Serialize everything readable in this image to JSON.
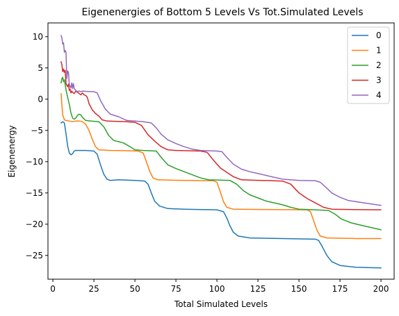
{
  "chart_data": {
    "type": "line",
    "title": "Eigenenergies of Bottom 5 Levels Vs Tot.Simulated Levels",
    "xlabel": "Total Simulated Levels",
    "ylabel": "Eigenenergy",
    "xlim": [
      -3,
      208
    ],
    "ylim": [
      -28.8,
      12.2
    ],
    "xticks": [
      0,
      25,
      50,
      75,
      100,
      125,
      150,
      175,
      200
    ],
    "yticks": [
      10,
      5,
      0,
      -5,
      -10,
      -15,
      -20,
      -25
    ],
    "grid": false,
    "legend_position": "top-right",
    "series": [
      {
        "name": "0",
        "color": "#1f77b4",
        "points": [
          [
            5,
            -3.8
          ],
          [
            6,
            -3.6
          ],
          [
            7,
            -3.8
          ],
          [
            8,
            -5.5
          ],
          [
            9,
            -7.5
          ],
          [
            10,
            -8.6
          ],
          [
            11,
            -8.9
          ],
          [
            12,
            -8.7
          ],
          [
            13,
            -8.3
          ],
          [
            14,
            -8.2
          ],
          [
            20,
            -8.2
          ],
          [
            25,
            -8.3
          ],
          [
            27,
            -8.8
          ],
          [
            29,
            -10.5
          ],
          [
            31,
            -12.0
          ],
          [
            33,
            -12.8
          ],
          [
            35,
            -13.0
          ],
          [
            40,
            -12.9
          ],
          [
            50,
            -13.0
          ],
          [
            56,
            -13.1
          ],
          [
            58,
            -13.6
          ],
          [
            60,
            -15.0
          ],
          [
            62,
            -16.3
          ],
          [
            65,
            -17.1
          ],
          [
            70,
            -17.5
          ],
          [
            80,
            -17.6
          ],
          [
            100,
            -17.7
          ],
          [
            104,
            -18.0
          ],
          [
            106,
            -19.0
          ],
          [
            108,
            -20.3
          ],
          [
            110,
            -21.3
          ],
          [
            113,
            -21.9
          ],
          [
            120,
            -22.2
          ],
          [
            140,
            -22.3
          ],
          [
            160,
            -22.4
          ],
          [
            162,
            -22.6
          ],
          [
            164,
            -23.5
          ],
          [
            167,
            -25.0
          ],
          [
            170,
            -26.0
          ],
          [
            175,
            -26.6
          ],
          [
            185,
            -26.9
          ],
          [
            200,
            -27.0
          ]
        ]
      },
      {
        "name": "1",
        "color": "#ff7f0e",
        "points": [
          [
            5,
            0.9
          ],
          [
            5.5,
            -1.0
          ],
          [
            6,
            -2.5
          ],
          [
            7,
            -3.3
          ],
          [
            8,
            -3.4
          ],
          [
            10,
            -3.5
          ],
          [
            12,
            -3.6
          ],
          [
            14,
            -3.5
          ],
          [
            16,
            -3.5
          ],
          [
            18,
            -3.6
          ],
          [
            20,
            -4.0
          ],
          [
            22,
            -5.0
          ],
          [
            24,
            -6.4
          ],
          [
            26,
            -7.6
          ],
          [
            28,
            -8.1
          ],
          [
            35,
            -8.2
          ],
          [
            45,
            -8.25
          ],
          [
            52,
            -8.3
          ],
          [
            55,
            -8.6
          ],
          [
            57,
            -10.0
          ],
          [
            59,
            -11.5
          ],
          [
            61,
            -12.6
          ],
          [
            64,
            -12.9
          ],
          [
            80,
            -13.0
          ],
          [
            98,
            -13.05
          ],
          [
            100,
            -13.3
          ],
          [
            102,
            -14.8
          ],
          [
            104,
            -16.4
          ],
          [
            106,
            -17.3
          ],
          [
            110,
            -17.6
          ],
          [
            130,
            -17.65
          ],
          [
            155,
            -17.7
          ],
          [
            157,
            -18.0
          ],
          [
            159,
            -19.5
          ],
          [
            161,
            -21.0
          ],
          [
            163,
            -21.9
          ],
          [
            167,
            -22.2
          ],
          [
            185,
            -22.3
          ],
          [
            200,
            -22.3
          ]
        ]
      },
      {
        "name": "2",
        "color": "#2ca02c",
        "points": [
          [
            5,
            2.6
          ],
          [
            5.5,
            3.3
          ],
          [
            6,
            3.5
          ],
          [
            6.5,
            2.8
          ],
          [
            7,
            3.1
          ],
          [
            8,
            1.5
          ],
          [
            9,
            0.3
          ],
          [
            10,
            -0.8
          ],
          [
            11,
            -2.2
          ],
          [
            12,
            -3.0
          ],
          [
            13,
            -3.2
          ],
          [
            14,
            -3.0
          ],
          [
            15,
            -2.6
          ],
          [
            16,
            -2.4
          ],
          [
            17,
            -2.5
          ],
          [
            18,
            -2.9
          ],
          [
            20,
            -3.4
          ],
          [
            23,
            -3.5
          ],
          [
            28,
            -3.6
          ],
          [
            31,
            -4.4
          ],
          [
            34,
            -5.8
          ],
          [
            37,
            -6.6
          ],
          [
            40,
            -6.8
          ],
          [
            43,
            -7.0
          ],
          [
            47,
            -7.6
          ],
          [
            50,
            -8.1
          ],
          [
            55,
            -8.2
          ],
          [
            63,
            -8.3
          ],
          [
            66,
            -9.3
          ],
          [
            70,
            -10.5
          ],
          [
            75,
            -11.1
          ],
          [
            80,
            -11.6
          ],
          [
            85,
            -12.1
          ],
          [
            90,
            -12.6
          ],
          [
            95,
            -12.9
          ],
          [
            108,
            -13.0
          ],
          [
            112,
            -13.6
          ],
          [
            116,
            -14.6
          ],
          [
            120,
            -15.3
          ],
          [
            125,
            -15.8
          ],
          [
            130,
            -16.3
          ],
          [
            140,
            -16.9
          ],
          [
            145,
            -17.3
          ],
          [
            150,
            -17.6
          ],
          [
            160,
            -17.7
          ],
          [
            168,
            -17.8
          ],
          [
            172,
            -18.4
          ],
          [
            176,
            -19.2
          ],
          [
            182,
            -19.8
          ],
          [
            190,
            -20.3
          ],
          [
            200,
            -20.9
          ]
        ]
      },
      {
        "name": "3",
        "color": "#d62728",
        "points": [
          [
            5,
            6.0
          ],
          [
            5.5,
            5.5
          ],
          [
            6,
            4.4
          ],
          [
            6.5,
            4.8
          ],
          [
            7,
            4.3
          ],
          [
            7.5,
            4.6
          ],
          [
            8,
            2.5
          ],
          [
            8.5,
            2.2
          ],
          [
            9,
            2.0
          ],
          [
            9.5,
            2.4
          ],
          [
            10,
            1.4
          ],
          [
            10.5,
            1.6
          ],
          [
            11,
            1.0
          ],
          [
            11.5,
            1.3
          ],
          [
            12,
            1.1
          ],
          [
            13,
            0.9
          ],
          [
            14,
            1.3
          ],
          [
            15,
            1.1
          ],
          [
            16,
            0.9
          ],
          [
            17,
            0.7
          ],
          [
            18,
            1.0
          ],
          [
            19,
            0.7
          ],
          [
            20,
            0.6
          ],
          [
            21,
            0.3
          ],
          [
            22,
            -0.7
          ],
          [
            24,
            -1.7
          ],
          [
            26,
            -2.3
          ],
          [
            28,
            -2.7
          ],
          [
            30,
            -3.3
          ],
          [
            33,
            -3.5
          ],
          [
            45,
            -3.6
          ],
          [
            50,
            -3.7
          ],
          [
            54,
            -4.2
          ],
          [
            58,
            -5.7
          ],
          [
            62,
            -6.7
          ],
          [
            66,
            -7.6
          ],
          [
            70,
            -8.1
          ],
          [
            75,
            -8.2
          ],
          [
            90,
            -8.3
          ],
          [
            94,
            -8.5
          ],
          [
            98,
            -9.8
          ],
          [
            102,
            -11.0
          ],
          [
            106,
            -11.7
          ],
          [
            110,
            -12.4
          ],
          [
            115,
            -12.9
          ],
          [
            140,
            -13.1
          ],
          [
            145,
            -13.6
          ],
          [
            150,
            -15.0
          ],
          [
            155,
            -15.9
          ],
          [
            160,
            -16.6
          ],
          [
            165,
            -17.3
          ],
          [
            170,
            -17.6
          ],
          [
            180,
            -17.65
          ],
          [
            200,
            -17.7
          ]
        ]
      },
      {
        "name": "4",
        "color": "#9467bd",
        "points": [
          [
            5,
            10.2
          ],
          [
            5.5,
            9.8
          ],
          [
            6,
            8.8
          ],
          [
            6.5,
            9.0
          ],
          [
            7,
            7.5
          ],
          [
            7.5,
            7.8
          ],
          [
            8,
            7.5
          ],
          [
            8.5,
            3.3
          ],
          [
            9,
            4.5
          ],
          [
            9.5,
            4.3
          ],
          [
            10,
            2.4
          ],
          [
            10.5,
            2.0
          ],
          [
            11,
            1.8
          ],
          [
            11.5,
            2.6
          ],
          [
            12,
            1.7
          ],
          [
            12.5,
            2.5
          ],
          [
            13,
            1.7
          ],
          [
            14,
            1.4
          ],
          [
            15,
            1.2
          ],
          [
            16,
            1.3
          ],
          [
            17,
            1.2
          ],
          [
            18,
            1.3
          ],
          [
            20,
            1.25
          ],
          [
            25,
            1.2
          ],
          [
            27,
            1.0
          ],
          [
            29,
            -0.2
          ],
          [
            32,
            -1.6
          ],
          [
            35,
            -2.4
          ],
          [
            40,
            -2.8
          ],
          [
            45,
            -3.4
          ],
          [
            50,
            -3.5
          ],
          [
            55,
            -3.6
          ],
          [
            60,
            -3.8
          ],
          [
            63,
            -4.6
          ],
          [
            66,
            -5.6
          ],
          [
            70,
            -6.5
          ],
          [
            75,
            -7.1
          ],
          [
            80,
            -7.6
          ],
          [
            85,
            -8.0
          ],
          [
            90,
            -8.2
          ],
          [
            100,
            -8.3
          ],
          [
            103,
            -8.4
          ],
          [
            106,
            -9.3
          ],
          [
            110,
            -10.4
          ],
          [
            115,
            -11.2
          ],
          [
            120,
            -11.6
          ],
          [
            125,
            -11.9
          ],
          [
            130,
            -12.2
          ],
          [
            140,
            -12.8
          ],
          [
            150,
            -13.0
          ],
          [
            160,
            -13.05
          ],
          [
            163,
            -13.3
          ],
          [
            166,
            -14.0
          ],
          [
            170,
            -15.0
          ],
          [
            175,
            -15.7
          ],
          [
            180,
            -16.2
          ],
          [
            190,
            -16.6
          ],
          [
            200,
            -17.0
          ]
        ]
      }
    ]
  }
}
